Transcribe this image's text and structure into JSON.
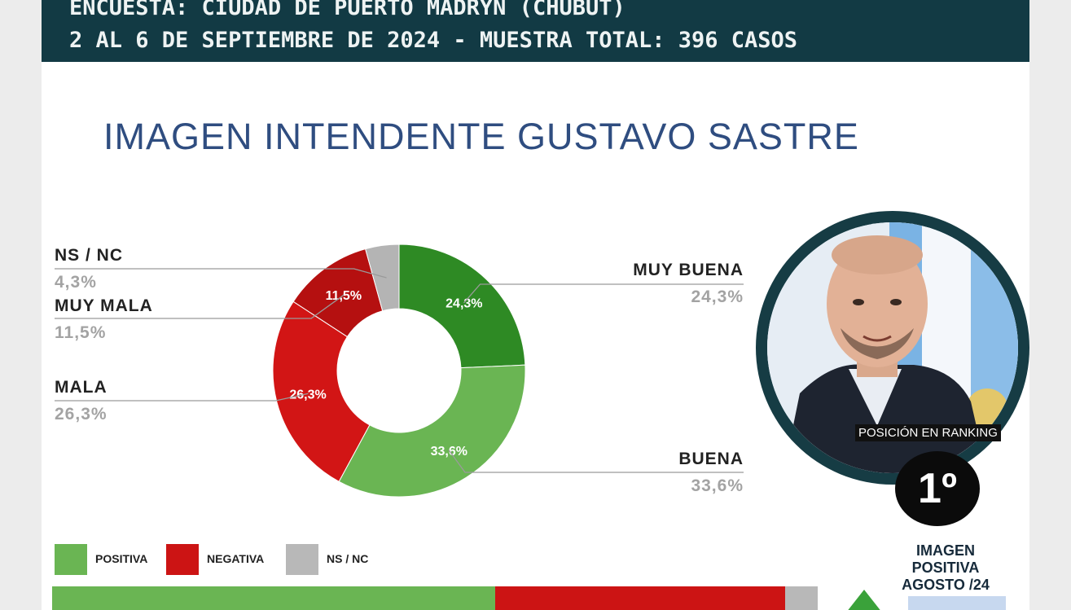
{
  "header": {
    "line1": "ENCUESTA: CIUDAD DE PUERTO MADRYN (CHUBUT)",
    "line2": "2 AL 6 DE SEPTIEMBRE DE 2024 - MUESTRA TOTAL: 396 CASOS"
  },
  "title": "IMAGEN INTENDENTE  GUSTAVO SASTRE",
  "chart_data": {
    "type": "pie",
    "variant": "donut",
    "categories": [
      "MUY BUENA",
      "BUENA",
      "MALA",
      "MUY MALA",
      "NS / NC"
    ],
    "values": [
      24.3,
      33.6,
      26.3,
      11.5,
      4.3
    ],
    "value_labels": [
      "24,3%",
      "33,6%",
      "26,3%",
      "11,5%",
      "4,3%"
    ],
    "slice_labels": [
      "24,3%",
      "33,6%",
      "26,3%",
      "11,5%",
      ""
    ],
    "colors": [
      "#2e8a24",
      "#6ab553",
      "#d21515",
      "#b51010",
      "#b4b4b4"
    ]
  },
  "legend": {
    "items": [
      {
        "label": "POSITIVA",
        "color": "#6ab553"
      },
      {
        "label": "NEGATIVA",
        "color": "#cc1414"
      },
      {
        "label": "NS / NC",
        "color": "#b8b8b8"
      }
    ]
  },
  "bottom_bar": {
    "values": [
      57.9,
      37.8,
      4.3
    ],
    "colors": [
      "#6ab553",
      "#cc1414",
      "#b8b8b8"
    ]
  },
  "ranking": {
    "label": "POSICIÓN EN RANKING",
    "position": "1º",
    "note_lines": [
      "IMAGEN",
      "POSITIVA",
      "AGOSTO /24"
    ]
  }
}
